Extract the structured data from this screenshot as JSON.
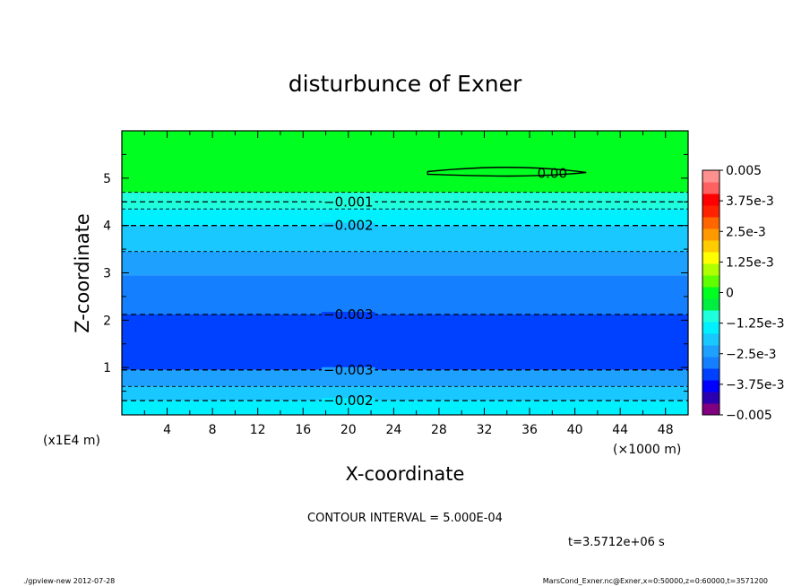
{
  "chart_data": {
    "type": "heatmap",
    "title": "disturbunce of Exner",
    "xlabel": "X-coordinate",
    "ylabel": "Z-coordinate",
    "x_unit": "(×1000 m)",
    "y_unit": "(x1E4 m)",
    "xlim": [
      0,
      50
    ],
    "ylim": [
      0,
      6
    ],
    "x_ticks": [
      "4",
      "8",
      "12",
      "16",
      "20",
      "24",
      "28",
      "32",
      "36",
      "40",
      "44",
      "48"
    ],
    "y_ticks": [
      "1",
      "2",
      "3",
      "4",
      "5"
    ],
    "contour_interval_text": "CONTOUR INTERVAL = 5.000E-04",
    "time_text": "t=3.5712e+06 s",
    "colorbar": {
      "labels": [
        "0.005",
        "3.75e-3",
        "2.5e-3",
        "1.25e-3",
        "0",
        "−1.25e-3",
        "−2.5e-3",
        "−3.75e-3",
        "−0.005"
      ],
      "colors": [
        "#800080",
        "#2a00b0",
        "#0000ff",
        "#0040ff",
        "#1480ff",
        "#1ea0ff",
        "#18c8ff",
        "#00f0ff",
        "#20ffdd",
        "#00ee40",
        "#00ff20",
        "#60ff00",
        "#b0ff00",
        "#ffff00",
        "#ffcc00",
        "#ff9900",
        "#ff6600",
        "#ff2200",
        "#ff0000",
        "#ff6060",
        "#ff9090"
      ]
    },
    "fill_bands": [
      {
        "z_bottom": 0.0,
        "z_top": 0.3,
        "color": "#00f0ff"
      },
      {
        "z_bottom": 0.3,
        "z_top": 0.6,
        "color": "#18c8ff"
      },
      {
        "z_bottom": 0.6,
        "z_top": 0.95,
        "color": "#1ea0ff"
      },
      {
        "z_bottom": 0.95,
        "z_top": 2.12,
        "color": "#0040ff"
      },
      {
        "z_bottom": 2.12,
        "z_top": 2.95,
        "color": "#1480ff"
      },
      {
        "z_bottom": 2.95,
        "z_top": 3.45,
        "color": "#1ea0ff"
      },
      {
        "z_bottom": 3.45,
        "z_top": 4.0,
        "color": "#18c8ff"
      },
      {
        "z_bottom": 4.0,
        "z_top": 4.35,
        "color": "#00f0ff"
      },
      {
        "z_bottom": 4.35,
        "z_top": 4.7,
        "color": "#20ffdd"
      },
      {
        "z_bottom": 4.7,
        "z_top": 6.0,
        "color": "#00ff20"
      }
    ],
    "contours": [
      {
        "z": 0.3,
        "label": "−0.002",
        "label_x": 20,
        "style": "major"
      },
      {
        "z": 0.6,
        "label": "",
        "style": "minor"
      },
      {
        "z": 0.95,
        "label": "−0.003",
        "label_x": 20,
        "style": "major"
      },
      {
        "z": 2.12,
        "label": "−0.003",
        "label_x": 20,
        "style": "major"
      },
      {
        "z": 3.45,
        "label": "",
        "style": "minor"
      },
      {
        "z": 4.0,
        "label": "−0.002",
        "label_x": 20,
        "style": "major"
      },
      {
        "z": 4.35,
        "label": "",
        "style": "minor"
      },
      {
        "z": 4.5,
        "label": "−0.001",
        "label_x": 20,
        "style": "major"
      },
      {
        "z": 4.7,
        "label": "",
        "style": "minor"
      }
    ],
    "zero_contour": {
      "x_start": 27,
      "x_end": 41,
      "z": 5.12,
      "label": "0.00",
      "label_x": 38
    }
  },
  "footer": {
    "left": "./gpview-new   2012-07-28",
    "right": "MarsCond_Exner.nc@Exner,x=0:50000,z=0:60000,t=3571200"
  }
}
